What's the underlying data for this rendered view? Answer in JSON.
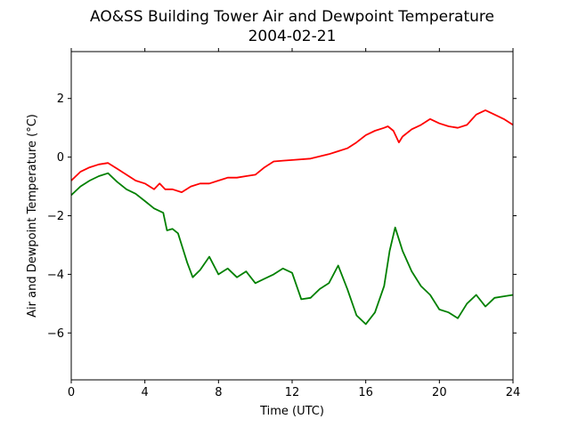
{
  "chart_data": {
    "type": "line",
    "title": "AO&SS Building Tower Air and Dewpoint Temperature",
    "subtitle": "2004-02-21",
    "xlabel": "Time (UTC)",
    "ylabel": "Air and Dewpoint Temperature (°C)",
    "xlim": [
      0,
      24
    ],
    "ylim": [
      -7.6,
      3.6
    ],
    "xticks": [
      0,
      4,
      8,
      12,
      16,
      20,
      24
    ],
    "yticks": [
      -6,
      -4,
      -2,
      0,
      2
    ],
    "xtick_labels": [
      "0",
      "4",
      "8",
      "12",
      "16",
      "20",
      "24"
    ],
    "ytick_labels": [
      "−6",
      "−4",
      "−2",
      "0",
      "2"
    ],
    "grid": false,
    "series": [
      {
        "color": "#ff0000",
        "x": [
          0,
          0.5,
          1,
          1.5,
          2,
          2.5,
          3,
          3.5,
          4,
          4.5,
          4.8,
          5.1,
          5.5,
          6,
          6.5,
          7,
          7.5,
          8,
          8.5,
          9,
          9.5,
          10,
          10.5,
          11,
          11.5,
          12,
          13,
          14,
          15,
          15.5,
          16,
          16.5,
          17,
          17.2,
          17.5,
          17.8,
          18,
          18.5,
          19,
          19.5,
          20,
          20.5,
          21,
          21.5,
          22,
          22.5,
          23,
          23.5,
          24
        ],
        "values": [
          -0.8,
          -0.5,
          -0.35,
          -0.25,
          -0.2,
          -0.4,
          -0.6,
          -0.8,
          -0.9,
          -1.1,
          -0.9,
          -1.1,
          -1.1,
          -1.2,
          -1.0,
          -0.9,
          -0.9,
          -0.8,
          -0.7,
          -0.7,
          -0.65,
          -0.6,
          -0.35,
          -0.15,
          -0.12,
          -0.1,
          -0.05,
          0.1,
          0.3,
          0.5,
          0.75,
          0.9,
          1.0,
          1.05,
          0.9,
          0.5,
          0.7,
          0.95,
          1.1,
          1.3,
          1.15,
          1.05,
          1.0,
          1.1,
          1.45,
          1.6,
          1.45,
          1.3,
          1.1
        ]
      },
      {
        "color": "#008000",
        "x": [
          0,
          0.5,
          1,
          1.5,
          2,
          2.5,
          3,
          3.5,
          4,
          4.5,
          5,
          5.2,
          5.5,
          5.8,
          6,
          6.3,
          6.6,
          7,
          7.5,
          8,
          8.5,
          9,
          9.5,
          10,
          10.5,
          11,
          11.5,
          12,
          12.5,
          13,
          13.5,
          14,
          14.5,
          15,
          15.5,
          16,
          16.5,
          17,
          17.3,
          17.6,
          18,
          18.5,
          19,
          19.5,
          20,
          20.5,
          21,
          21.5,
          22,
          22.5,
          23,
          23.5,
          24
        ],
        "values": [
          -1.3,
          -1.0,
          -0.8,
          -0.65,
          -0.55,
          -0.85,
          -1.1,
          -1.25,
          -1.5,
          -1.75,
          -1.9,
          -2.5,
          -2.45,
          -2.6,
          -3.0,
          -3.6,
          -4.1,
          -3.85,
          -3.4,
          -4.0,
          -3.8,
          -4.1,
          -3.9,
          -4.3,
          -4.15,
          -4.0,
          -3.8,
          -3.95,
          -4.85,
          -4.8,
          -4.5,
          -4.3,
          -3.7,
          -4.5,
          -5.4,
          -5.7,
          -5.3,
          -4.4,
          -3.2,
          -2.4,
          -3.2,
          -3.9,
          -4.4,
          -4.7,
          -5.2,
          -5.3,
          -5.5,
          -5.0,
          -4.7,
          -5.1,
          -4.8,
          -4.75,
          -4.7
        ]
      }
    ]
  }
}
